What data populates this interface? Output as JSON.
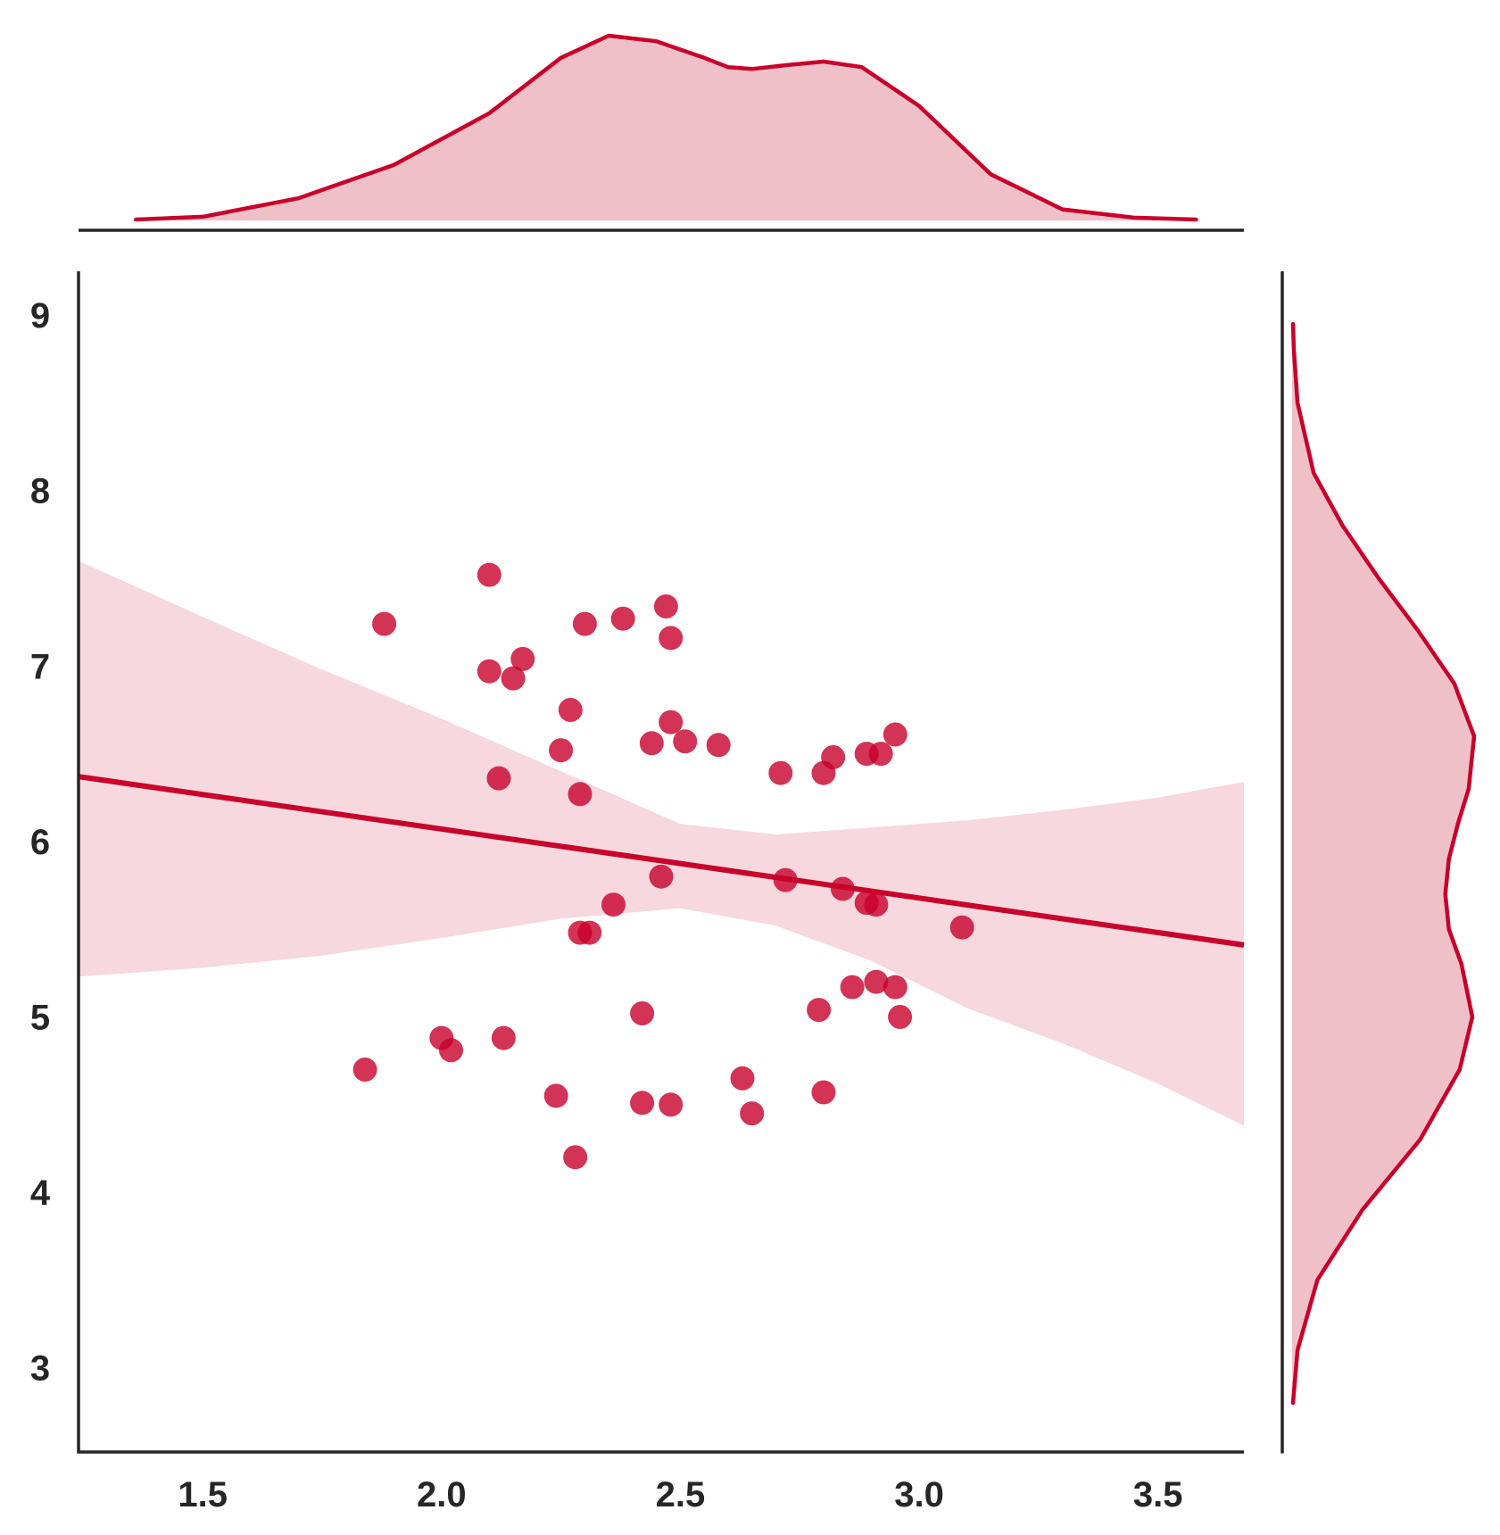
{
  "chart_data": {
    "type": "scatter",
    "title": "",
    "xlabel": "",
    "ylabel": "",
    "xlim": [
      1.24,
      3.68
    ],
    "ylim": [
      2.52,
      9.25
    ],
    "x_ticks": [
      1.5,
      2.0,
      2.5,
      3.0,
      3.5
    ],
    "x_tick_labels": [
      "1.5",
      "2.0",
      "2.5",
      "3.0",
      "3.5"
    ],
    "y_ticks": [
      3,
      4,
      5,
      6,
      7,
      8,
      9
    ],
    "y_tick_labels": [
      "3",
      "4",
      "5",
      "6",
      "7",
      "8",
      "9"
    ],
    "grid": false,
    "legend": "none",
    "colors": {
      "accent": "#c8002a",
      "fill": "#f0c0c8",
      "band": "#f6d8de",
      "axis": "#262626"
    },
    "points": [
      {
        "x": 1.84,
        "y": 4.7
      },
      {
        "x": 1.88,
        "y": 7.24
      },
      {
        "x": 2.0,
        "y": 4.88
      },
      {
        "x": 2.02,
        "y": 4.81
      },
      {
        "x": 2.1,
        "y": 7.52
      },
      {
        "x": 2.1,
        "y": 6.97
      },
      {
        "x": 2.12,
        "y": 6.36
      },
      {
        "x": 2.13,
        "y": 4.88
      },
      {
        "x": 2.15,
        "y": 6.93
      },
      {
        "x": 2.17,
        "y": 7.04
      },
      {
        "x": 2.24,
        "y": 4.55
      },
      {
        "x": 2.25,
        "y": 6.52
      },
      {
        "x": 2.27,
        "y": 6.75
      },
      {
        "x": 2.28,
        "y": 4.2
      },
      {
        "x": 2.29,
        "y": 5.48
      },
      {
        "x": 2.29,
        "y": 6.27
      },
      {
        "x": 2.3,
        "y": 7.24
      },
      {
        "x": 2.31,
        "y": 5.48
      },
      {
        "x": 2.36,
        "y": 5.64
      },
      {
        "x": 2.38,
        "y": 7.27
      },
      {
        "x": 2.42,
        "y": 5.02
      },
      {
        "x": 2.42,
        "y": 4.51
      },
      {
        "x": 2.44,
        "y": 6.56
      },
      {
        "x": 2.46,
        "y": 5.8
      },
      {
        "x": 2.47,
        "y": 7.34
      },
      {
        "x": 2.48,
        "y": 6.68
      },
      {
        "x": 2.48,
        "y": 4.5
      },
      {
        "x": 2.48,
        "y": 7.16
      },
      {
        "x": 2.51,
        "y": 6.57
      },
      {
        "x": 2.58,
        "y": 6.55
      },
      {
        "x": 2.63,
        "y": 4.65
      },
      {
        "x": 2.65,
        "y": 4.45
      },
      {
        "x": 2.71,
        "y": 6.39
      },
      {
        "x": 2.72,
        "y": 5.78
      },
      {
        "x": 2.79,
        "y": 5.04
      },
      {
        "x": 2.8,
        "y": 4.57
      },
      {
        "x": 2.8,
        "y": 6.39
      },
      {
        "x": 2.82,
        "y": 6.48
      },
      {
        "x": 2.84,
        "y": 5.73
      },
      {
        "x": 2.86,
        "y": 5.17
      },
      {
        "x": 2.89,
        "y": 6.5
      },
      {
        "x": 2.89,
        "y": 5.65
      },
      {
        "x": 2.91,
        "y": 5.2
      },
      {
        "x": 2.91,
        "y": 5.64
      },
      {
        "x": 2.92,
        "y": 6.5
      },
      {
        "x": 2.95,
        "y": 6.61
      },
      {
        "x": 2.95,
        "y": 5.17
      },
      {
        "x": 2.96,
        "y": 5.0
      },
      {
        "x": 3.09,
        "y": 5.51
      }
    ],
    "regression_line": {
      "x": [
        1.24,
        3.68
      ],
      "y": [
        6.37,
        5.41
      ]
    },
    "confidence_band": {
      "x": [
        1.24,
        1.5,
        1.75,
        2.0,
        2.25,
        2.5,
        2.7,
        2.9,
        3.1,
        3.3,
        3.5,
        3.68
      ],
      "upper": [
        7.6,
        7.28,
        6.98,
        6.7,
        6.4,
        6.1,
        6.04,
        6.08,
        6.12,
        6.18,
        6.25,
        6.34
      ],
      "lower": [
        5.23,
        5.28,
        5.35,
        5.45,
        5.56,
        5.62,
        5.52,
        5.32,
        5.05,
        4.85,
        4.62,
        4.38
      ]
    },
    "marginal_x_kde": {
      "x": [
        1.36,
        1.5,
        1.7,
        1.9,
        2.1,
        2.25,
        2.35,
        2.45,
        2.55,
        2.6,
        2.65,
        2.72,
        2.8,
        2.88,
        3.0,
        3.15,
        3.3,
        3.45,
        3.58
      ],
      "density": [
        0.005,
        0.02,
        0.12,
        0.3,
        0.58,
        0.88,
        1.0,
        0.97,
        0.88,
        0.83,
        0.82,
        0.84,
        0.86,
        0.83,
        0.62,
        0.25,
        0.06,
        0.015,
        0.005
      ]
    },
    "marginal_y_kde": {
      "y": [
        2.8,
        3.1,
        3.5,
        3.9,
        4.3,
        4.7,
        5.0,
        5.3,
        5.5,
        5.7,
        5.9,
        6.1,
        6.3,
        6.6,
        6.9,
        7.2,
        7.5,
        7.8,
        8.1,
        8.5,
        8.8,
        8.95
      ],
      "density": [
        0.005,
        0.03,
        0.14,
        0.39,
        0.71,
        0.93,
        1.0,
        0.94,
        0.87,
        0.85,
        0.87,
        0.92,
        0.98,
        1.01,
        0.9,
        0.7,
        0.48,
        0.28,
        0.12,
        0.03,
        0.01,
        0.005
      ]
    }
  }
}
